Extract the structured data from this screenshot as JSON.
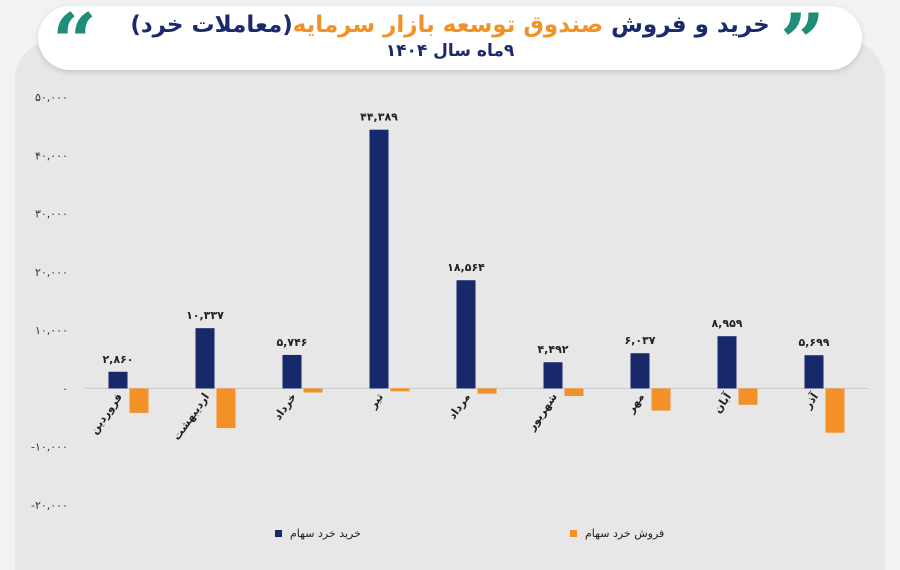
{
  "header": {
    "title_part1": "خرید و فروش",
    "title_part2": "صندوق توسعه بازار سرمایه",
    "title_part3": "(معاملات خرد)",
    "subtitle": "۹ماه سال ۱۴۰۴",
    "quote_left": "“",
    "quote_right": "”"
  },
  "colors": {
    "buy": "#17296b",
    "sell": "#f39129",
    "title_accent": "#f39129",
    "quote": "#1f8d78"
  },
  "chart_data": {
    "type": "bar",
    "categories": [
      "فروردین",
      "اردیبهشت",
      "خرداد",
      "تیر",
      "مرداد",
      "شهریور",
      "مهر",
      "آبان",
      "آذر"
    ],
    "series": [
      {
        "name": "خرید خرد سهام",
        "values": [
          2860,
          10337,
          5746,
          44389,
          18564,
          4492,
          6037,
          8959,
          5699
        ],
        "labels": [
          "۲,۸۶۰",
          "۱۰,۳۳۷",
          "۵,۷۴۶",
          "۴۴,۳۸۹",
          "۱۸,۵۶۴",
          "۴,۴۹۲",
          "۶,۰۳۷",
          "۸,۹۵۹",
          "۵,۶۹۹"
        ]
      },
      {
        "name": "فروش خرد سهام",
        "values": [
          -4200,
          -6800,
          -700,
          -500,
          -900,
          -1300,
          -3800,
          -2800,
          -7600
        ]
      }
    ],
    "yticks": [
      -20000,
      -10000,
      0,
      10000,
      20000,
      30000,
      40000,
      50000
    ],
    "ytick_labels": [
      "-۲۰,۰۰۰",
      "-۱۰,۰۰۰",
      "۰",
      "۱۰,۰۰۰",
      "۲۰,۰۰۰",
      "۳۰,۰۰۰",
      "۴۰,۰۰۰",
      "۵۰,۰۰۰"
    ],
    "ylim": [
      -20000,
      50000
    ],
    "grid": false,
    "legend_position": "bottom"
  }
}
